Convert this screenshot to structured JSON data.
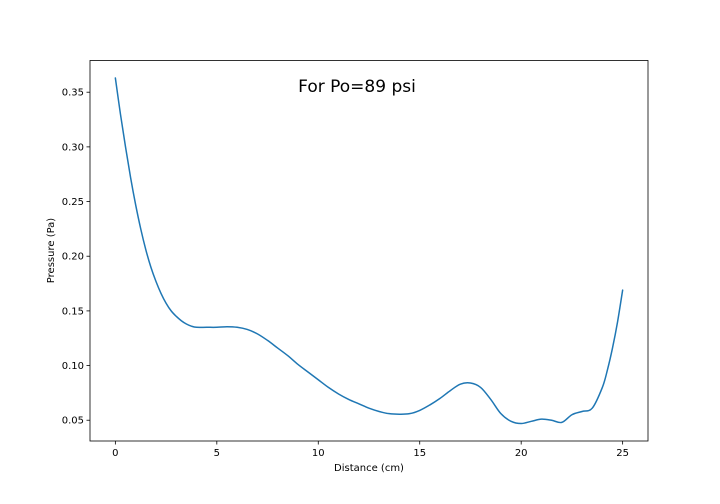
{
  "chart_data": {
    "type": "line",
    "title": "For Po=89 psi",
    "xlabel": "Distance (cm)",
    "ylabel": "Pressure (Pa)",
    "xlim": [
      -1.25,
      26.25
    ],
    "ylim": [
      0.031,
      0.379
    ],
    "xticks": [
      0,
      5,
      10,
      15,
      20,
      25
    ],
    "yticks": [
      0.05,
      0.1,
      0.15,
      0.2,
      0.25,
      0.3,
      0.35
    ],
    "xtick_labels": [
      "0",
      "5",
      "10",
      "15",
      "20",
      "25"
    ],
    "ytick_labels": [
      "0.05",
      "0.10",
      "0.15",
      "0.20",
      "0.25",
      "0.30",
      "0.35"
    ],
    "grid": false,
    "legend": "none",
    "series": [
      {
        "color": "#1f77b4",
        "x": [
          0,
          0.25,
          0.5,
          0.75,
          1,
          1.25,
          1.5,
          1.75,
          2,
          2.25,
          2.5,
          2.75,
          3,
          3.25,
          3.5,
          3.75,
          4,
          4.5,
          5,
          5.5,
          6,
          6.5,
          7,
          7.5,
          8,
          8.5,
          9,
          9.5,
          10,
          10.5,
          11,
          11.5,
          12,
          12.5,
          13,
          13.5,
          14,
          14.5,
          15,
          15.5,
          16,
          16.5,
          17,
          17.5,
          18,
          18.5,
          19,
          19.5,
          20,
          20.5,
          21,
          21.5,
          22,
          22.5,
          23,
          23.5,
          24,
          24.25,
          24.5,
          24.75,
          25
        ],
        "y": [
          0.363,
          0.33,
          0.3,
          0.272,
          0.247,
          0.225,
          0.206,
          0.19,
          0.177,
          0.166,
          0.157,
          0.15,
          0.145,
          0.141,
          0.138,
          0.136,
          0.135,
          0.135,
          0.135,
          0.1355,
          0.135,
          0.133,
          0.129,
          0.123,
          0.116,
          0.109,
          0.101,
          0.094,
          0.087,
          0.08,
          0.074,
          0.069,
          0.065,
          0.061,
          0.058,
          0.056,
          0.0555,
          0.056,
          0.059,
          0.064,
          0.07,
          0.077,
          0.083,
          0.084,
          0.08,
          0.069,
          0.056,
          0.049,
          0.047,
          0.049,
          0.051,
          0.05,
          0.048,
          0.055,
          0.058,
          0.061,
          0.08,
          0.096,
          0.116,
          0.14,
          0.169
        ]
      }
    ]
  }
}
